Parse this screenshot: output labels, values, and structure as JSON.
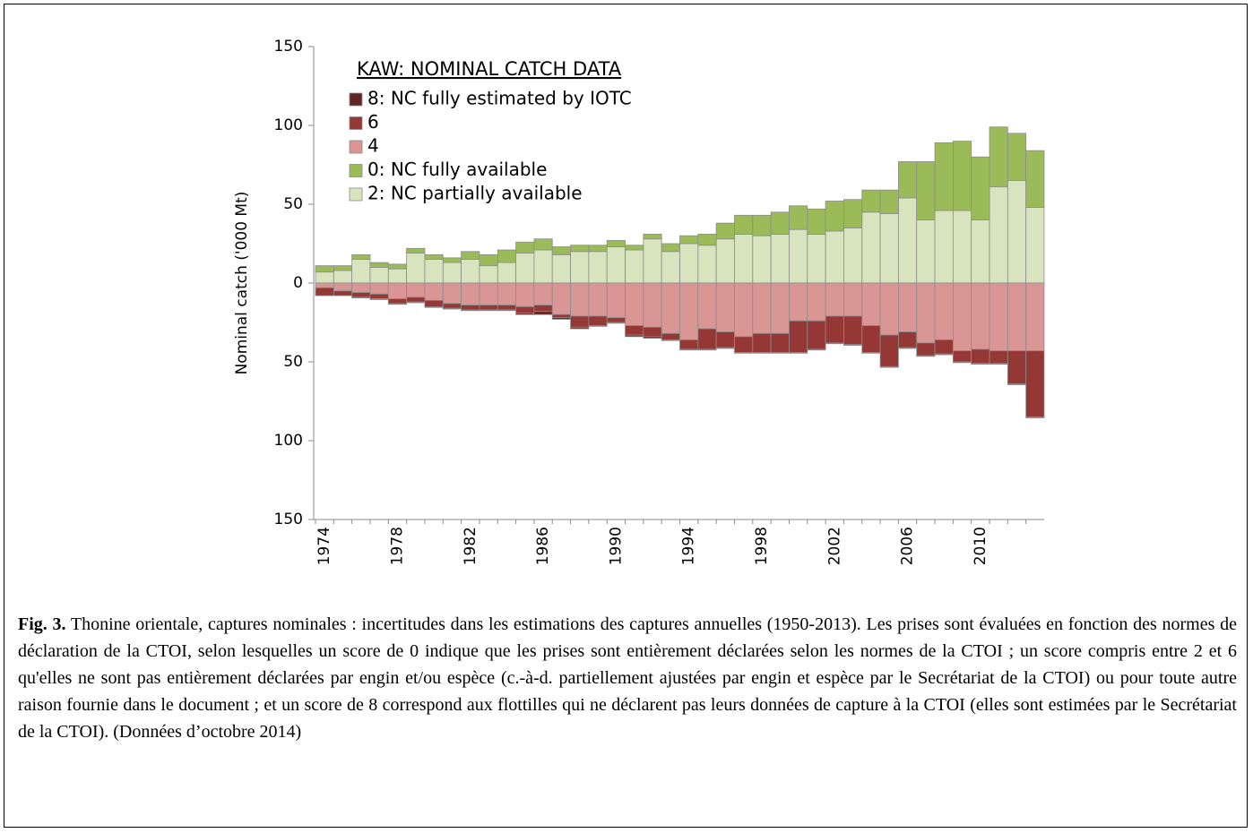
{
  "chart_data": {
    "type": "stacked-bar",
    "y_label": "Nominal catch ('000 Mt)",
    "legend_title": "KAW: NOMINAL CATCH DATA",
    "legend": "top-left",
    "categories": [
      "1974",
      null,
      null,
      null,
      "1978",
      null,
      null,
      null,
      "1982",
      null,
      null,
      null,
      "1986",
      null,
      null,
      null,
      "1990",
      null,
      null,
      null,
      "1994",
      null,
      null,
      null,
      "1998",
      null,
      null,
      null,
      "2002",
      null,
      null,
      null,
      "2006",
      null,
      null,
      null,
      "2010",
      null,
      null,
      null
    ],
    "ylim": [
      -150,
      150
    ],
    "yticks": [
      {
        "value": -150,
        "label": "150",
        "color": "#ff0000"
      },
      {
        "value": -100,
        "label": "100",
        "color": "#ff0000"
      },
      {
        "value": -50,
        "label": "50",
        "color": "#ff0000"
      },
      0,
      50,
      100,
      150
    ],
    "series": [
      {
        "name": "8: NC fully estimated by IOTC",
        "color": "#632523",
        "values": [
          0,
          0,
          -0.5,
          -0.5,
          -0.5,
          -0.5,
          -0.5,
          -0.5,
          -0.5,
          -0.5,
          -0.5,
          -1,
          -2,
          -1,
          -1,
          -0.5,
          -0.5,
          -1,
          -1,
          -0.5,
          -0.5,
          -0.5,
          -0.5,
          -0.5,
          -0.5,
          -0.5,
          -0.5,
          -0.5,
          -0.5,
          -0.5,
          -0.5,
          -0.5,
          -0.5,
          -0.5,
          -0.5,
          -0.5,
          -0.5,
          -0.5,
          -0.5,
          -0.5
        ]
      },
      {
        "name": "6",
        "color": "#953735",
        "values": [
          -5,
          -3,
          -3,
          -3,
          -3,
          -3,
          -4,
          -3,
          -3,
          -3,
          -3,
          -4,
          -4,
          -2,
          -7,
          -6,
          -3,
          -6,
          -6,
          -4,
          -6,
          -13,
          -10,
          -10,
          -12,
          -12,
          -20,
          -18,
          -17,
          -18,
          -17,
          -20,
          -10,
          -8,
          -9,
          -7,
          -9,
          -8,
          -21,
          -42
        ]
      },
      {
        "name": "4",
        "color": "#d99694",
        "values": [
          -3,
          -5,
          -6,
          -7,
          -10,
          -9,
          -11,
          -13,
          -14,
          -14,
          -14,
          -15,
          -14,
          -20,
          -21,
          -21,
          -22,
          -27,
          -28,
          -32,
          -36,
          -29,
          -31,
          -34,
          -32,
          -32,
          -24,
          -24,
          -21,
          -21,
          -27,
          -33,
          -31,
          -38,
          -36,
          -43,
          -42,
          -43,
          -43,
          -43
        ]
      },
      {
        "name": "0: NC fully available",
        "color": "#9bbb59",
        "values": [
          4,
          3,
          3,
          3,
          3,
          3,
          3,
          3,
          5,
          7,
          8,
          7,
          7,
          5,
          4,
          4,
          4,
          3,
          3,
          5,
          5,
          7,
          10,
          12,
          13,
          14,
          15,
          16,
          19,
          18,
          14,
          15,
          23,
          37,
          43,
          44,
          40,
          38,
          30,
          36
        ]
      },
      {
        "name": "2: NC partially available",
        "color": "#d7e4bd",
        "values": [
          7,
          8,
          15,
          10,
          9,
          19,
          15,
          13,
          15,
          11,
          13,
          19,
          21,
          18,
          20,
          20,
          23,
          21,
          28,
          20,
          25,
          24,
          28,
          31,
          30,
          31,
          34,
          31,
          33,
          35,
          45,
          44,
          54,
          40,
          46,
          46,
          40,
          61,
          65,
          48
        ]
      }
    ]
  },
  "caption": {
    "label": "Fig. 3.",
    "text": "Thonine orientale, captures nominales : incertitudes dans les estimations des captures annuelles (1950-2013). Les prises sont évaluées en fonction des normes de déclaration de la CTOI, selon lesquelles un score de 0 indique que les prises sont entièrement déclarées selon les normes de la CTOI ; un score compris entre 2 et 6 qu'elles ne sont pas entièrement déclarées par engin et/ou espèce (c.-à-d. partiellement ajustées par engin et espèce par le Secrétariat de la CTOI) ou pour toute autre raison fournie dans le document ; et un score de 8 correspond aux flottilles qui ne déclarent pas leurs données de capture à la CTOI (elles sont estimées par le Secrétariat de la CTOI).  (Données d’octobre 2014)"
  }
}
